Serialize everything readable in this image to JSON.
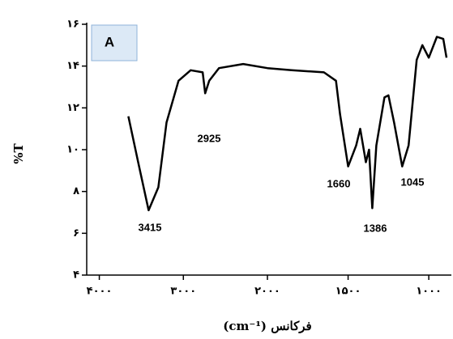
{
  "chart_data": {
    "type": "line",
    "panel_label": "A",
    "x_label": "فرکانس (cm⁻¹)",
    "y_label": "%T",
    "x": [
      3654,
      3538,
      3413,
      3298,
      3200,
      3058,
      2913,
      2770,
      2740,
      2692,
      2577,
      2288,
      2000,
      1850,
      1650,
      1575,
      1550,
      1500,
      1450,
      1425,
      1390,
      1370,
      1350,
      1325,
      1275,
      1250,
      1215,
      1165,
      1125,
      1075,
      1040,
      1000,
      950,
      910,
      890
    ],
    "series": [
      {
        "color": "#000000",
        "values": [
          11.6,
          9.4,
          7.1,
          8.2,
          11.3,
          13.3,
          13.8,
          13.7,
          12.7,
          13.3,
          13.9,
          14.1,
          13.9,
          13.8,
          13.7,
          13.3,
          11.7,
          9.2,
          10.2,
          11.0,
          9.4,
          10.0,
          7.2,
          10.2,
          12.5,
          12.6,
          11.3,
          9.2,
          10.2,
          14.3,
          15.0,
          14.4,
          15.4,
          15.3,
          14.4
        ]
      }
    ],
    "annotations": [
      "3415",
      "2925",
      "1660",
      "1386",
      "1045"
    ],
    "xlim": [
      4150,
      860
    ],
    "x_scale_change": 2000,
    "xticks": [
      {
        "value": 4000,
        "label": "۴۰۰۰"
      },
      {
        "value": 3000,
        "label": "۳۰۰۰"
      },
      {
        "value": 2000,
        "label": "۲۰۰۰"
      },
      {
        "value": 1500,
        "label": "۱۵۰۰"
      },
      {
        "value": 1000,
        "label": "۱۰۰۰"
      }
    ],
    "ylim": [
      4,
      16
    ],
    "yticks": [
      {
        "value": 4,
        "label": "۴"
      },
      {
        "value": 6,
        "label": "۶"
      },
      {
        "value": 8,
        "label": "۸"
      },
      {
        "value": 10,
        "label": "۱۰"
      },
      {
        "value": 12,
        "label": "۱۲"
      },
      {
        "value": 14,
        "label": "۱۴"
      },
      {
        "value": 16,
        "label": "۱۶"
      }
    ],
    "grid": false
  }
}
